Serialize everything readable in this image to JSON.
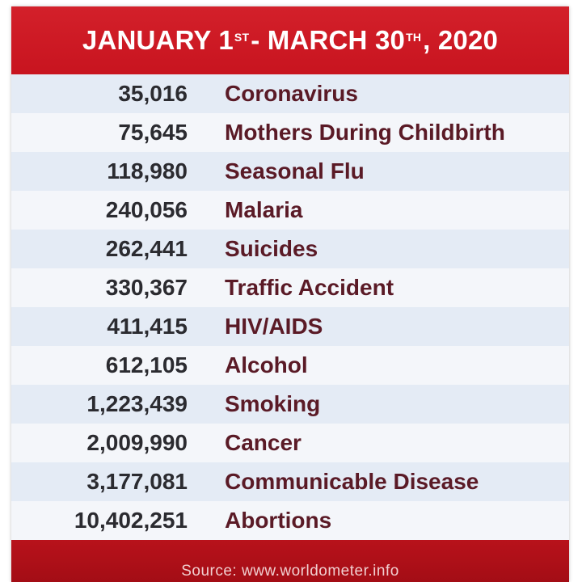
{
  "header": {
    "title_part1": "JANUARY 1",
    "title_sup1": "ST",
    "title_part2": " - MARCH 30",
    "title_sup2": "TH",
    "title_part3": ", 2020"
  },
  "rows": [
    {
      "value": "35,016",
      "label": "Coronavirus"
    },
    {
      "value": "75,645",
      "label": "Mothers During Childbirth"
    },
    {
      "value": "118,980",
      "label": "Seasonal Flu"
    },
    {
      "value": "240,056",
      "label": "Malaria"
    },
    {
      "value": "262,441",
      "label": "Suicides"
    },
    {
      "value": "330,367",
      "label": "Traffic Accident"
    },
    {
      "value": "411,415",
      "label": "HIV/AIDS"
    },
    {
      "value": "612,105",
      "label": "Alcohol"
    },
    {
      "value": "1,223,439",
      "label": "Smoking"
    },
    {
      "value": "2,009,990",
      "label": "Cancer"
    },
    {
      "value": "3,177,081",
      "label": "Communicable Disease"
    },
    {
      "value": "10,402,251",
      "label": "Abortions"
    }
  ],
  "footer": {
    "source": "Source: www.worldometer.info"
  },
  "colors": {
    "header_red": "#c8141f",
    "footer_red": "#a30d15",
    "row_odd": "#e4ebf5",
    "row_even": "#f4f6fa",
    "label_color": "#5a1a26"
  }
}
